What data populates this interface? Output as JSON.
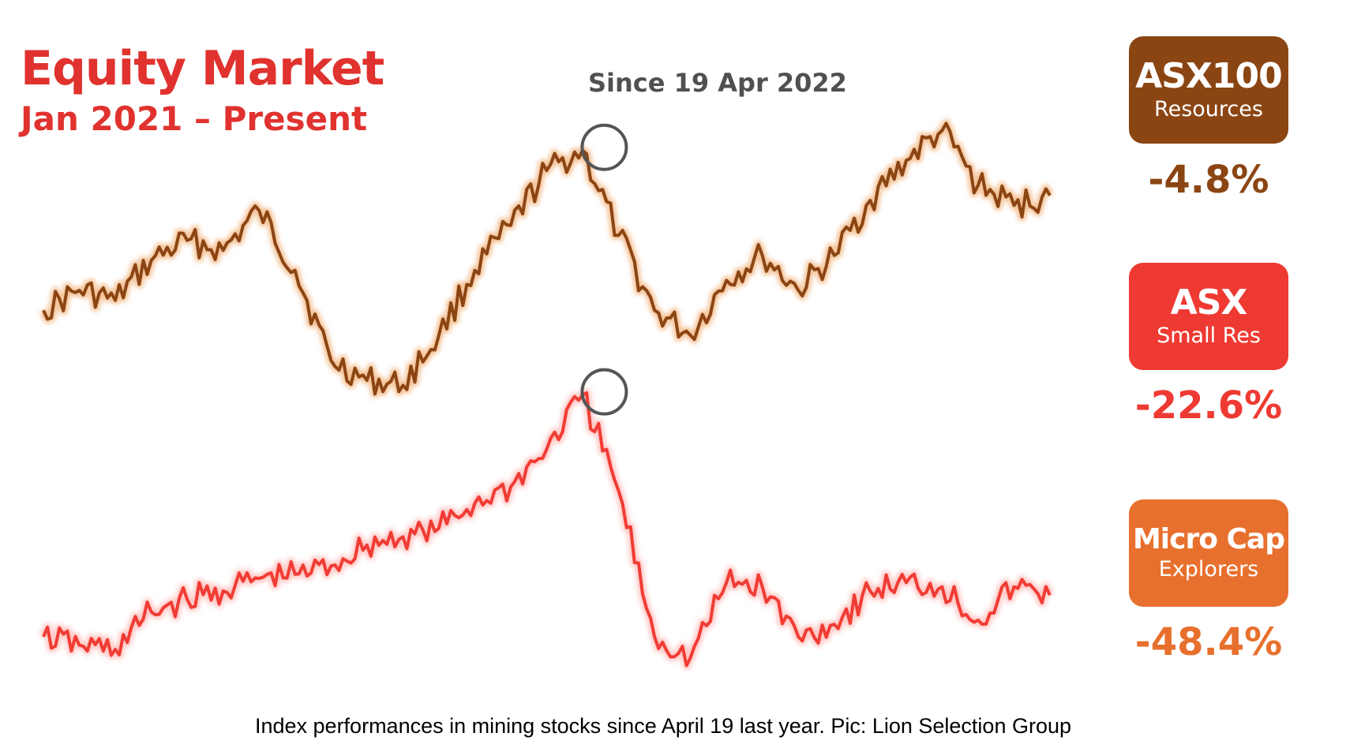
{
  "chart_data": {
    "type": "line",
    "title": "Equity Market",
    "subtitle": "Jan 2021 – Present",
    "annotation": "Since 19 Apr 2022",
    "x_range": [
      "2021-01",
      "2023-05"
    ],
    "highlight_x": "2022-04-19",
    "grid": false,
    "legend_placement": "right",
    "series": [
      {
        "name": "ASX100 Resources",
        "label_title": "ASX100",
        "label_sub": "Resources",
        "change": "-4.8%",
        "color": "#8b4513",
        "badge_color": "#8b4513",
        "glow": "#f5c49a",
        "x": [
          "2021-01",
          "2021-02",
          "2021-03",
          "2021-04",
          "2021-05",
          "2021-06",
          "2021-07",
          "2021-08",
          "2021-09",
          "2021-10",
          "2021-11",
          "2021-12",
          "2022-01",
          "2022-02",
          "2022-03",
          "2022-04",
          "2022-05",
          "2022-06",
          "2022-07",
          "2022-08",
          "2022-09",
          "2022-10",
          "2022-11",
          "2022-12",
          "2023-01",
          "2023-02",
          "2023-03",
          "2023-04",
          "2023-05"
        ],
        "values": [
          100,
          104,
          102,
          110,
          114,
          112,
          120,
          108,
          90,
          86,
          85,
          95,
          108,
          117,
          128,
          132,
          115,
          100,
          95,
          106,
          111,
          104,
          111,
          122,
          130,
          136,
          125,
          121,
          123
        ]
      },
      {
        "name": "ASX Small Res",
        "label_title": "ASX",
        "label_sub": "Small Res",
        "change": "-22.6%",
        "color": "#f03c34",
        "badge_color": "#ee3a32",
        "glow": "#ffc9c6",
        "x": [
          "2021-01",
          "2021-02",
          "2021-03",
          "2021-04",
          "2021-05",
          "2021-06",
          "2021-07",
          "2021-08",
          "2021-09",
          "2021-10",
          "2021-11",
          "2021-12",
          "2022-01",
          "2022-02",
          "2022-03",
          "2022-04",
          "2022-05",
          "2022-06",
          "2022-07",
          "2022-08",
          "2022-09",
          "2022-10",
          "2022-11",
          "2022-12",
          "2023-01",
          "2023-02",
          "2023-03",
          "2023-04",
          "2023-05"
        ],
        "values": [
          100,
          98,
          97,
          106,
          109,
          111,
          114,
          115,
          117,
          122,
          124,
          126,
          132,
          136,
          145,
          158,
          135,
          100,
          95,
          113,
          112,
          100,
          103,
          111,
          113,
          112,
          104,
          112,
          110
        ]
      },
      {
        "name": "Micro Cap Explorers",
        "label_title": "Micro Cap",
        "label_sub": "Explorers",
        "change": "-48.4%",
        "color": "#e8702e",
        "badge_color": "#e8702e"
      }
    ]
  },
  "caption": "Index performances in mining stocks since April 19 last year. Pic: Lion Selection Group"
}
